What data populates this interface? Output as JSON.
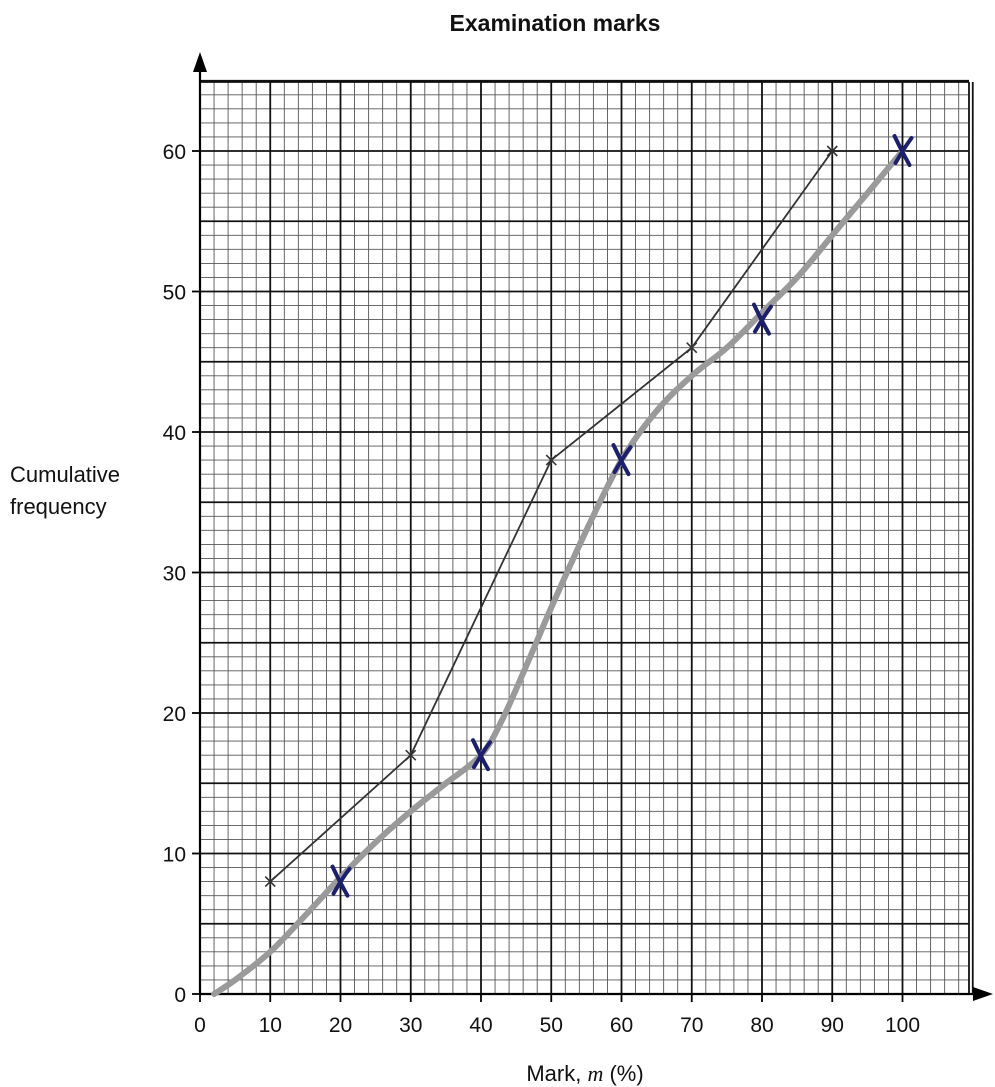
{
  "chart_data": {
    "type": "line",
    "title": "Examination marks",
    "xlabel": "Mark, m (%)",
    "ylabel": [
      "Cumulative",
      "frequency"
    ],
    "xlim": [
      0,
      110
    ],
    "ylim": [
      0,
      65
    ],
    "x_ticks": [
      0,
      10,
      20,
      30,
      40,
      50,
      60,
      70,
      80,
      90,
      100
    ],
    "y_ticks": [
      0,
      10,
      20,
      30,
      40,
      50,
      60
    ],
    "grid": true,
    "series": [
      {
        "style": "printed-polygon",
        "color": "#333333",
        "x": [
          10,
          30,
          50,
          70,
          90
        ],
        "y": [
          8,
          17,
          38,
          46,
          60
        ]
      },
      {
        "style": "handwritten-points",
        "color": "#1c1e6e",
        "x": [
          20,
          40,
          60,
          80,
          100
        ],
        "y": [
          8,
          17,
          38,
          48,
          60
        ]
      },
      {
        "style": "drawn-curve",
        "color": "#9a9a9a",
        "x": [
          2,
          5,
          10,
          15,
          20,
          25,
          30,
          35,
          40,
          43,
          47,
          50,
          55,
          60,
          65,
          70,
          75,
          80,
          85,
          90,
          95,
          100
        ],
        "y": [
          0,
          1,
          3,
          5.6,
          8.3,
          10.8,
          13,
          15,
          17,
          19.5,
          24,
          27.5,
          33,
          38,
          41.5,
          44,
          46,
          48.5,
          51,
          54,
          57,
          60
        ]
      }
    ]
  }
}
